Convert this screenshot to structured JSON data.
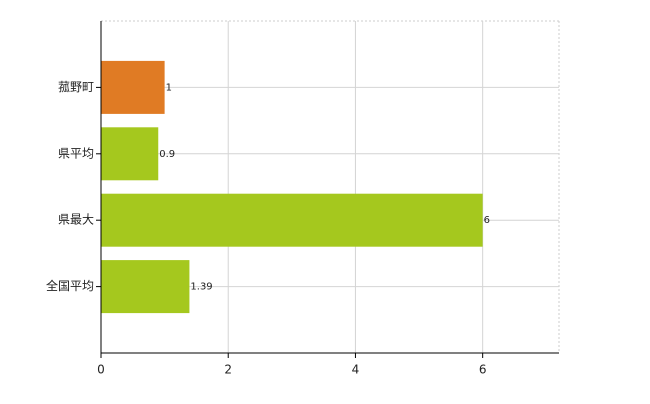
{
  "chart_data": {
    "type": "hbar",
    "categories": [
      "菰野町",
      "県平均",
      "県最大",
      "全国平均"
    ],
    "values": [
      1,
      0.9,
      6,
      1.39
    ],
    "colors": [
      "#e07b24",
      "#a5c81e",
      "#a5c81e",
      "#a5c81e"
    ],
    "xlim": [
      0,
      7.2
    ],
    "xticks": [
      0,
      2,
      4,
      6
    ],
    "grid": true
  }
}
